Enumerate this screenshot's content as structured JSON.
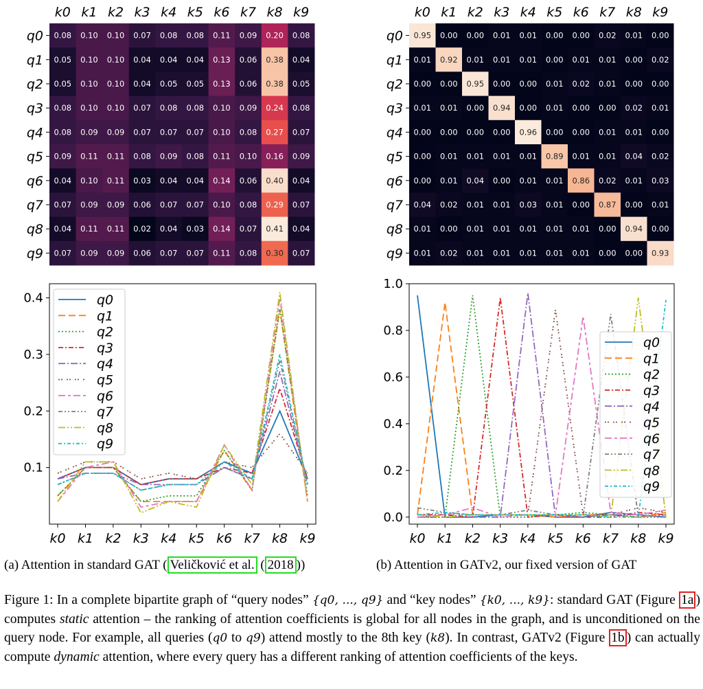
{
  "chart_data": [
    {
      "type": "heatmap",
      "name": "Attention in standard GAT",
      "x_labels": [
        "k0",
        "k1",
        "k2",
        "k3",
        "k4",
        "k5",
        "k6",
        "k7",
        "k8",
        "k9"
      ],
      "y_labels": [
        "q0",
        "q1",
        "q2",
        "q3",
        "q4",
        "q5",
        "q6",
        "q7",
        "q8",
        "q9"
      ],
      "values": [
        [
          0.08,
          0.1,
          0.1,
          0.07,
          0.08,
          0.08,
          0.11,
          0.09,
          0.2,
          0.08
        ],
        [
          0.05,
          0.1,
          0.1,
          0.04,
          0.04,
          0.04,
          0.13,
          0.06,
          0.38,
          0.04
        ],
        [
          0.05,
          0.1,
          0.1,
          0.04,
          0.05,
          0.05,
          0.13,
          0.06,
          0.38,
          0.05
        ],
        [
          0.08,
          0.1,
          0.1,
          0.07,
          0.08,
          0.08,
          0.1,
          0.09,
          0.24,
          0.08
        ],
        [
          0.08,
          0.09,
          0.09,
          0.07,
          0.07,
          0.07,
          0.1,
          0.08,
          0.27,
          0.07
        ],
        [
          0.09,
          0.11,
          0.11,
          0.08,
          0.09,
          0.08,
          0.11,
          0.1,
          0.16,
          0.09
        ],
        [
          0.04,
          0.1,
          0.11,
          0.03,
          0.04,
          0.04,
          0.14,
          0.06,
          0.4,
          0.04
        ],
        [
          0.07,
          0.09,
          0.09,
          0.06,
          0.07,
          0.07,
          0.1,
          0.08,
          0.29,
          0.07
        ],
        [
          0.04,
          0.11,
          0.11,
          0.02,
          0.04,
          0.03,
          0.14,
          0.07,
          0.41,
          0.04
        ],
        [
          0.07,
          0.09,
          0.09,
          0.06,
          0.07,
          0.07,
          0.11,
          0.08,
          0.3,
          0.07
        ]
      ]
    },
    {
      "type": "heatmap",
      "name": "Attention in GATv2",
      "x_labels": [
        "k0",
        "k1",
        "k2",
        "k3",
        "k4",
        "k5",
        "k6",
        "k7",
        "k8",
        "k9"
      ],
      "y_labels": [
        "q0",
        "q1",
        "q2",
        "q3",
        "q4",
        "q5",
        "q6",
        "q7",
        "q8",
        "q9"
      ],
      "values": [
        [
          0.95,
          0.0,
          0.0,
          0.01,
          0.01,
          0.0,
          0.0,
          0.02,
          0.01,
          0.0
        ],
        [
          0.01,
          0.92,
          0.01,
          0.01,
          0.01,
          0.0,
          0.01,
          0.01,
          0.0,
          0.02
        ],
        [
          0.0,
          0.0,
          0.95,
          0.0,
          0.0,
          0.01,
          0.02,
          0.01,
          0.0,
          0.0
        ],
        [
          0.01,
          0.01,
          0.0,
          0.94,
          0.0,
          0.01,
          0.0,
          0.0,
          0.02,
          0.01
        ],
        [
          0.0,
          0.0,
          0.0,
          0.0,
          0.96,
          0.0,
          0.0,
          0.01,
          0.01,
          0.0
        ],
        [
          0.0,
          0.01,
          0.01,
          0.01,
          0.01,
          0.89,
          0.01,
          0.01,
          0.04,
          0.02
        ],
        [
          0.0,
          0.01,
          0.04,
          0.0,
          0.01,
          0.01,
          0.86,
          0.02,
          0.01,
          0.03
        ],
        [
          0.04,
          0.02,
          0.01,
          0.01,
          0.03,
          0.01,
          0.0,
          0.87,
          0.0,
          0.01
        ],
        [
          0.01,
          0.0,
          0.01,
          0.01,
          0.01,
          0.01,
          0.01,
          0.0,
          0.94,
          0.0
        ],
        [
          0.01,
          0.02,
          0.01,
          0.01,
          0.01,
          0.01,
          0.01,
          0.0,
          0.0,
          0.93
        ]
      ]
    },
    {
      "type": "line",
      "name": "Attention in standard GAT",
      "x": [
        "k0",
        "k1",
        "k2",
        "k3",
        "k4",
        "k5",
        "k6",
        "k7",
        "k8",
        "k9"
      ],
      "series_source": "rows of chart_data[0].values, one line per query",
      "legend": [
        "q0",
        "q1",
        "q2",
        "q3",
        "q4",
        "q5",
        "q6",
        "q7",
        "q8",
        "q9"
      ],
      "yticks": [
        "0.1",
        "0.2",
        "0.3",
        "0.4"
      ],
      "ylim": [
        0.0,
        0.425
      ],
      "legend_position": "upper-left"
    },
    {
      "type": "line",
      "name": "Attention in GATv2",
      "x": [
        "k0",
        "k1",
        "k2",
        "k3",
        "k4",
        "k5",
        "k6",
        "k7",
        "k8",
        "k9"
      ],
      "series_source": "rows of chart_data[1].values, one line per query",
      "legend": [
        "q0",
        "q1",
        "q2",
        "q3",
        "q4",
        "q5",
        "q6",
        "q7",
        "q8",
        "q9"
      ],
      "yticks": [
        "0.0",
        "0.2",
        "0.4",
        "0.6",
        "0.8",
        "1.0"
      ],
      "ylim": [
        -0.03,
        1.0
      ],
      "legend_position": "center-right"
    }
  ],
  "series_colors": [
    "#1f77b4",
    "#ff7f0e",
    "#2ca02c",
    "#d62728",
    "#9467bd",
    "#8c564b",
    "#e377c2",
    "#7f7f7f",
    "#bcbd22",
    "#17becf"
  ],
  "series_dashes": [
    "",
    "10,5",
    "2,3",
    "7,3,2,3",
    "10,3,2,3",
    "2,2,2,6",
    "10,4,4,4",
    "6,3,2,3,2,3",
    "10,3,2,3,2,3",
    "5,3,2,3"
  ],
  "captions": {
    "a_prefix": "(a) Attention in standard GAT (",
    "a_cite_author": "Veličković et al.",
    "a_cite_sep": " (",
    "a_cite_year": "2018",
    "a_suffix": "))",
    "b": "(b) Attention in GATv2, our fixed version of GAT"
  },
  "figure_caption": {
    "p1": "Figure 1: In a complete bipartite graph of “query nodes” ",
    "set_q": "{q0, ..., q9}",
    "p2": " and “key nodes” ",
    "set_k": "{k0, ..., k9}",
    "p3": ": standard GAT (Figure ",
    "ref_a": "1a",
    "p4": ") computes ",
    "em_static": "static",
    "p5": " attention – the ranking of attention coefficients is global for all nodes in the graph, and is unconditioned on the query node. For example, all queries (",
    "q0": "q0",
    "p6": " to ",
    "q9": "q9",
    "p7": ") attend mostly to the 8th key (",
    "k8": "k8",
    "p8": "). In contrast, GATv2 (Figure ",
    "ref_b": "1b",
    "p9": ") can actually compute ",
    "em_dynamic": "dynamic",
    "p10": " attention, where every query has a different ranking of attention coefficients of the keys."
  }
}
